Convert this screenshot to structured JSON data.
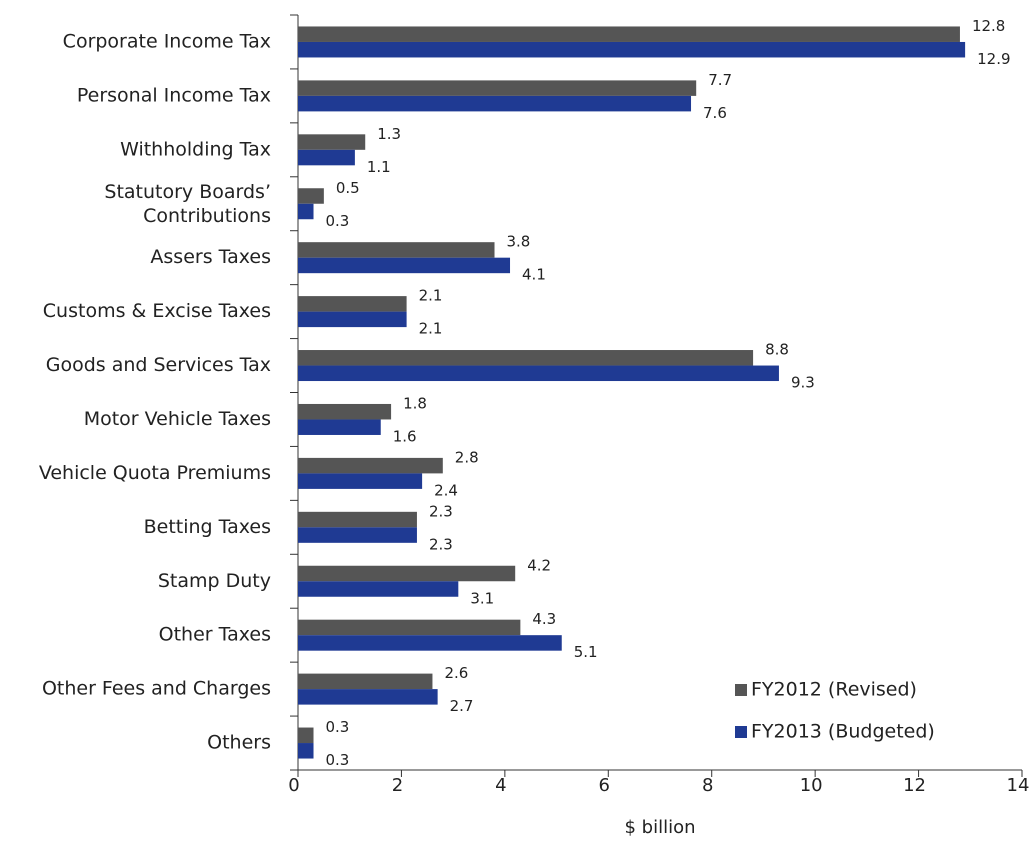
{
  "chart_data": {
    "type": "bar",
    "orientation": "horizontal",
    "x_label": "$ billion",
    "categories": [
      "Corporate Income Tax",
      "Personal Income Tax",
      "Withholding Tax",
      "Statutory Boards’\nContributions",
      "Assers Taxes",
      "Customs & Excise Taxes",
      "Goods and Services Tax",
      "Motor Vehicle Taxes",
      "Vehicle Quota Premiums",
      "Betting Taxes",
      "Stamp Duty",
      "Other Taxes",
      "Other Fees and Charges",
      "Others"
    ],
    "series": [
      {
        "name": "FY2012 (Revised)",
        "color": "#555555",
        "values": [
          12.8,
          7.7,
          1.3,
          0.5,
          3.8,
          2.1,
          8.8,
          1.8,
          2.8,
          2.3,
          4.2,
          4.3,
          2.6,
          0.3
        ]
      },
      {
        "name": "FY2013 (Budgeted)",
        "color": "#1f3a93",
        "values": [
          12.9,
          7.6,
          1.1,
          0.3,
          4.1,
          2.1,
          9.3,
          1.6,
          2.4,
          2.3,
          3.1,
          5.1,
          2.7,
          0.3
        ]
      }
    ],
    "xlim": [
      0,
      14
    ],
    "xticks": [
      0,
      2,
      4,
      6,
      8,
      10,
      12,
      14
    ],
    "legend": "lower right"
  }
}
